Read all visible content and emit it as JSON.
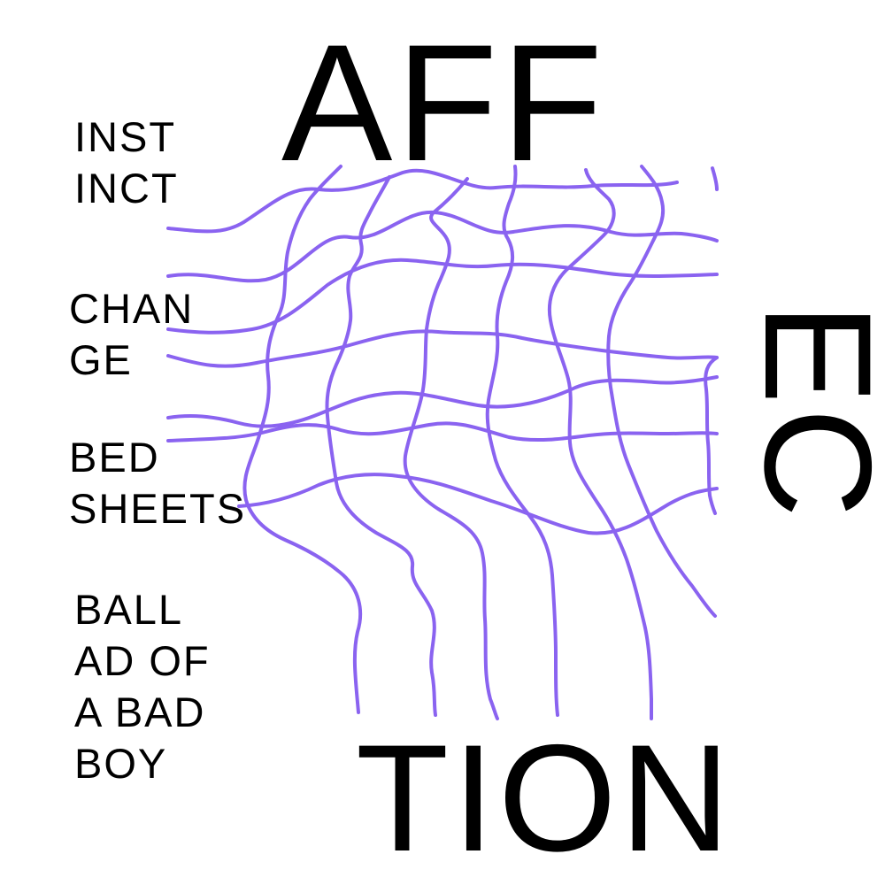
{
  "title": {
    "top": "AFF",
    "side": "EC",
    "bottom": "TION"
  },
  "phrases": [
    {
      "text": "INST\nINCT"
    },
    {
      "text": "CHAN\nGE"
    },
    {
      "text": "BED\nSHEETS"
    },
    {
      "text": "BALL\nAD OF\nA BAD\nBOY"
    }
  ],
  "colors": {
    "background": "#ffffff",
    "text": "#000000",
    "mesh": "#8a63f0"
  }
}
